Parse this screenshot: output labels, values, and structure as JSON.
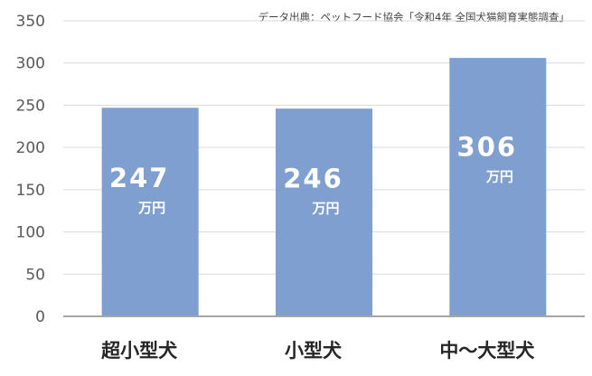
{
  "source_note": "データ出典：ペットフード協会「令和4年 全国犬猫飼育実態調査」",
  "chart_data": {
    "type": "bar",
    "categories": [
      "超小型犬",
      "小型犬",
      "中～大型犬"
    ],
    "values": [
      247,
      246,
      306
    ],
    "value_labels": [
      "247",
      "246",
      "306"
    ],
    "unit_label": "万円",
    "ylim": [
      0,
      350
    ],
    "y_ticks": [
      0,
      50,
      100,
      150,
      200,
      250,
      300,
      350
    ],
    "grid": true,
    "legend": "none",
    "bar_color": "#7f9fd0",
    "grid_color": "#d9d9d9",
    "axis_color": "#a6a6a6"
  }
}
